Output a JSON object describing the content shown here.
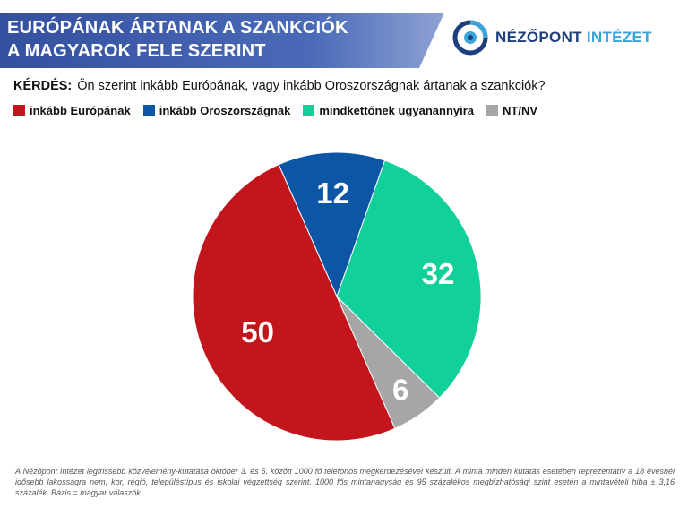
{
  "header": {
    "title_line1": "EURÓPÁNAK ÁRTANAK A SZANKCIÓK",
    "title_line2": "A MAGYAROK FELE SZERINT",
    "banner_color": "#3b57a8"
  },
  "logo": {
    "icon": "nezopont-logo-icon",
    "word1": "NÉZŐPONT",
    "word2": "INTÉZET"
  },
  "question": {
    "label": "KÉRDÉS:",
    "text": "Ön szerint inkább Európának, vagy inkább Oroszországnak ártanak a szankciók?"
  },
  "chart_data": {
    "type": "pie",
    "categories": [
      "inkább Európának",
      "inkább Oroszországnak",
      "mindkettőnek ugyanannyira",
      "NT/NV"
    ],
    "values": [
      50,
      12,
      32,
      6
    ],
    "colors": [
      "#c3161c",
      "#0d56a6",
      "#12d09a",
      "#a6a6a6"
    ],
    "legend_position": "top-left",
    "data_labels": true
  },
  "footnote": "A Nézőpont Intézet legfrissebb közvélemény-kutatása október 3. és 5. között 1000 fő telefonos megkérdezésével készült. A minta minden kutatás esetében reprezentatív a 18 évesnél idősebb lakosságra nem, kor, régió, településtípus és iskolai végzettség szerint. 1000 fős mintanagyság és 95 százalékos megbízhatósági szint esetén a mintavételi hiba ± 3,16 százalék. Bázis = magyar válaszók"
}
